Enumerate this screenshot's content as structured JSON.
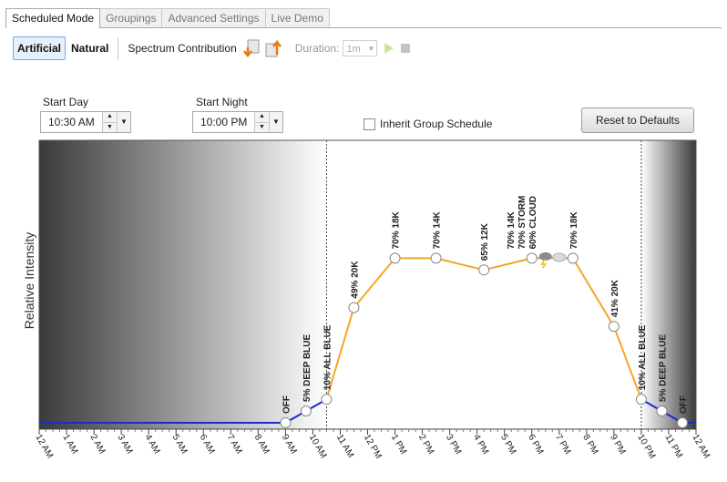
{
  "tabs": [
    {
      "label": "Scheduled Mode",
      "active": true
    },
    {
      "label": "Groupings",
      "active": false
    },
    {
      "label": "Advanced Settings",
      "active": false
    },
    {
      "label": "Live Demo",
      "active": false
    }
  ],
  "toolbar": {
    "artificial_label": "Artificial",
    "natural_label": "Natural",
    "spectrum_label": "Spectrum Contribution",
    "duration_label": "Duration:",
    "duration_value": "1m"
  },
  "schedule": {
    "start_day_label": "Start Day",
    "start_day_value": "10:30 AM",
    "start_night_label": "Start Night",
    "start_night_value": "10:00 PM",
    "inherit_label": "Inherit Group Schedule",
    "reset_label": "Reset to Defaults"
  },
  "chart_data": {
    "type": "line",
    "ylabel": "Relative Intensity",
    "x_ticks": [
      "12 AM",
      "1 AM",
      "2 AM",
      "3 AM",
      "4 AM",
      "5 AM",
      "6 AM",
      "7 AM",
      "8 AM",
      "9 AM",
      "10 AM",
      "11 AM",
      "12 PM",
      "1 PM",
      "2 PM",
      "3 PM",
      "4 PM",
      "5 PM",
      "6 PM",
      "7 PM",
      "8 PM",
      "9 PM",
      "10 PM",
      "11 PM",
      "12 AM"
    ],
    "x_range_hours": [
      0,
      24
    ],
    "y_range_percent": [
      0,
      100
    ],
    "day_start_hour": 10.5,
    "night_start_hour": 22,
    "points": [
      {
        "hour": 9.0,
        "intensity": 0,
        "label": "OFF",
        "phase": "night"
      },
      {
        "hour": 9.75,
        "intensity": 5,
        "label": "5% DEEP BLUE",
        "phase": "night"
      },
      {
        "hour": 10.5,
        "intensity": 10,
        "label": "10% ALL BLUE",
        "phase": "day"
      },
      {
        "hour": 11.5,
        "intensity": 49,
        "label": "49% 20K",
        "phase": "day"
      },
      {
        "hour": 13.0,
        "intensity": 70,
        "label": "70% 18K",
        "phase": "day"
      },
      {
        "hour": 14.5,
        "intensity": 70,
        "label": "70% 14K",
        "phase": "day"
      },
      {
        "hour": 16.25,
        "intensity": 65,
        "label": "65% 12K",
        "phase": "day"
      },
      {
        "hour": 18.0,
        "intensity": 70,
        "label": "70% 14K\n70% STORM\n60% CLOUD",
        "phase": "day"
      },
      {
        "hour": 19.5,
        "intensity": 70,
        "label": "70% 18K",
        "phase": "day"
      },
      {
        "hour": 21.0,
        "intensity": 41,
        "label": "41% 20K",
        "phase": "day"
      },
      {
        "hour": 22.0,
        "intensity": 10,
        "label": "10% ALL BLUE",
        "phase": "day"
      },
      {
        "hour": 22.75,
        "intensity": 5,
        "label": "5% DEEP BLUE",
        "phase": "night"
      },
      {
        "hour": 23.5,
        "intensity": 0,
        "label": "OFF",
        "phase": "night"
      }
    ],
    "day_color": "#f5a623",
    "night_color": "#1a2bd6",
    "grid": false
  }
}
